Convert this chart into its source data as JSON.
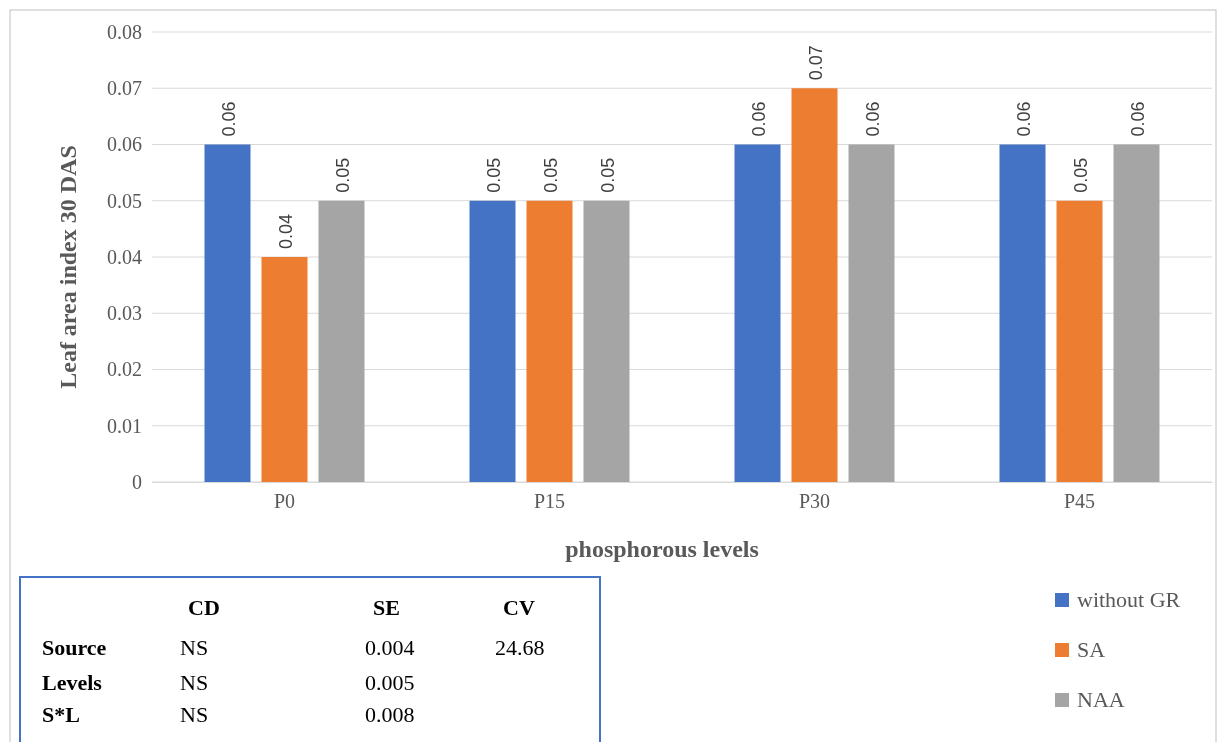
{
  "chart_data": {
    "type": "bar",
    "xlabel": "phosphorous levels",
    "ylabel": "Leaf area index 30 DAS",
    "categories": [
      "P0",
      "P15",
      "P30",
      "P45"
    ],
    "series": [
      {
        "name": "without GR",
        "color": "#4472c4",
        "values": [
          0.06,
          0.05,
          0.06,
          0.06
        ]
      },
      {
        "name": "SA",
        "color": "#ed7d31",
        "values": [
          0.04,
          0.05,
          0.07,
          0.05
        ]
      },
      {
        "name": "NAA",
        "color": "#a5a5a5",
        "values": [
          0.05,
          0.05,
          0.06,
          0.06
        ]
      }
    ],
    "ylim": [
      0,
      0.08
    ],
    "yticks": [
      0,
      0.01,
      0.02,
      0.03,
      0.04,
      0.05,
      0.06,
      0.07,
      0.08
    ],
    "grid": "y",
    "legend": "bottom right",
    "data_labels": true,
    "annotations": [
      "CD",
      "SE",
      "CV",
      "Source",
      "NS",
      "0.004",
      "24.68",
      "Levels",
      "NS",
      "0.005",
      "S*L",
      "NS",
      "0.008"
    ]
  }
}
